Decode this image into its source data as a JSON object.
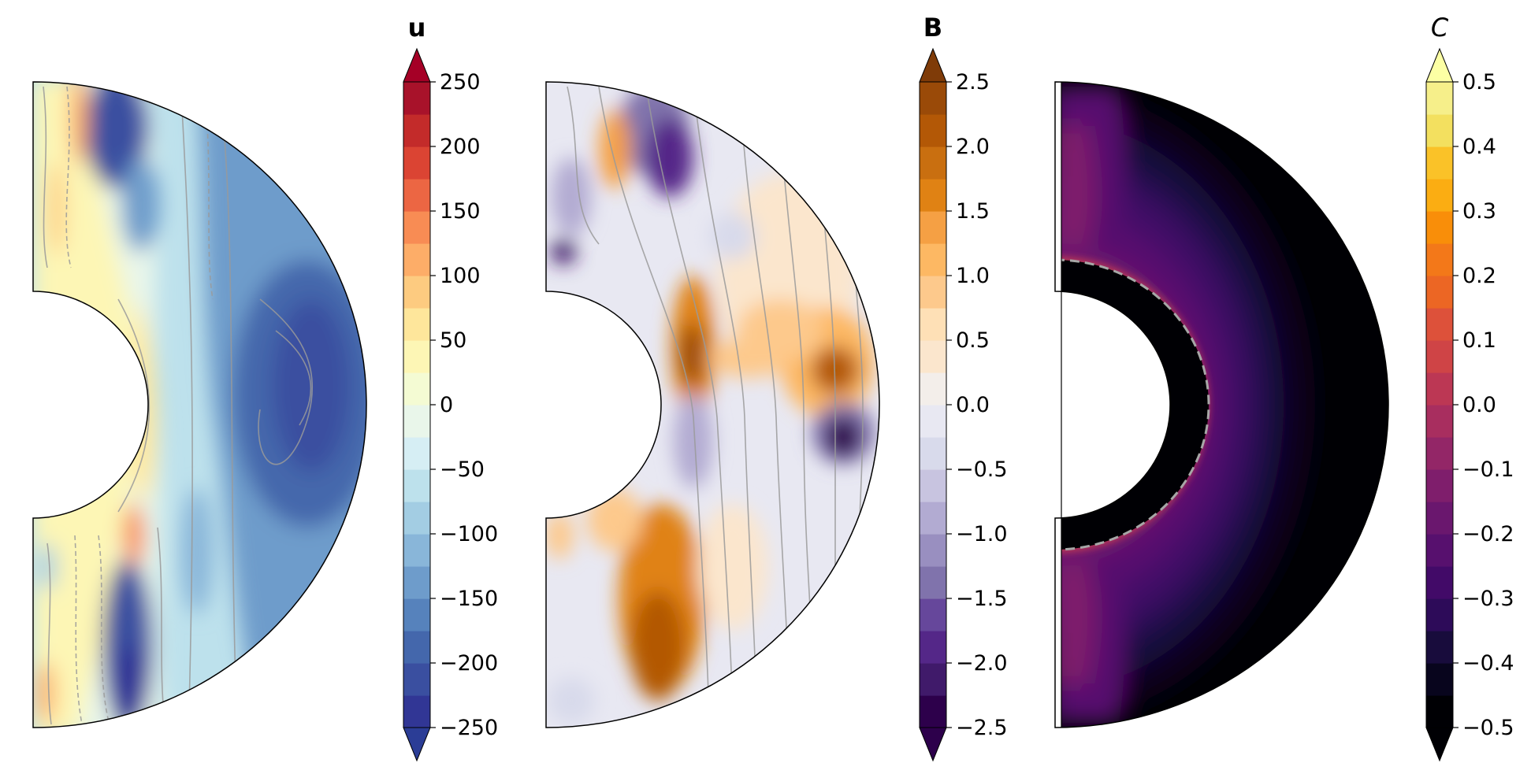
{
  "chart_data": [
    {
      "type": "heatmap",
      "subtype": "meridional-section-filled-contour",
      "colorbar_title": "u",
      "colormap": "RdYlBu_r",
      "colorbar_levels": [
        -250,
        -225,
        -200,
        -175,
        -150,
        -125,
        -100,
        -75,
        -50,
        -25,
        0,
        25,
        50,
        75,
        100,
        125,
        150,
        175,
        200,
        225,
        250
      ],
      "colorbar_ticks": [
        250,
        200,
        150,
        100,
        50,
        0,
        -50,
        -100,
        -150,
        -200,
        -250
      ],
      "colorbar_tick_labels": [
        "250",
        "200",
        "150",
        "100",
        "50",
        "0",
        "−50",
        "−100",
        "−150",
        "−200",
        "−250"
      ],
      "colorbar_extend": "both",
      "colors_low_to_high": [
        "#313695",
        "#3a4fa0",
        "#4467ac",
        "#5682bc",
        "#6e9ccb",
        "#89b6d9",
        "#a3cde3",
        "#bde1ec",
        "#d6eef4",
        "#e9f6ea",
        "#f4fbd3",
        "#fdf6b5",
        "#fee69b",
        "#fdcb80",
        "#fdad68",
        "#f88c54",
        "#ec6643",
        "#db4433",
        "#c32b2a",
        "#a8122a"
      ],
      "extend_colors": {
        "under": "#2b3d96",
        "over": "#a50026"
      },
      "contour_overlay": "thin grey contour lines, dashed where negative",
      "description_values": "strong negative (blue) belt at equator toward outer boundary; positive (red/orange) near inner boundary tangent cylinder and near the polar axis"
    },
    {
      "type": "heatmap",
      "subtype": "meridional-section-filled-contour",
      "colorbar_title": "B",
      "colormap": "PuOr",
      "colorbar_levels": [
        -2.5,
        -2.25,
        -2.0,
        -1.75,
        -1.5,
        -1.25,
        -1.0,
        -0.75,
        -0.5,
        -0.25,
        0.0,
        0.25,
        0.5,
        0.75,
        1.0,
        1.25,
        1.5,
        1.75,
        2.0,
        2.25,
        2.5
      ],
      "colorbar_ticks": [
        2.5,
        2.0,
        1.5,
        1.0,
        0.5,
        0.0,
        -0.5,
        -1.0,
        -1.5,
        -2.0,
        -2.5
      ],
      "colorbar_tick_labels": [
        "2.5",
        "2.0",
        "1.5",
        "1.0",
        "0.5",
        "0.0",
        "−0.5",
        "−1.0",
        "−1.5",
        "−2.0",
        "−2.5"
      ],
      "colorbar_extend": "both",
      "colors_low_to_high": [
        "#2d004b",
        "#401a6a",
        "#542788",
        "#66479b",
        "#8073ac",
        "#998fc0",
        "#b2abd2",
        "#c8c4e0",
        "#d8daeb",
        "#e8e8f2",
        "#f3eeea",
        "#fbe6cd",
        "#fee0b6",
        "#fdc98c",
        "#fdb863",
        "#f5a044",
        "#e08214",
        "#c96f10",
        "#b35806",
        "#9a4a08"
      ],
      "extend_colors": {
        "under": "#2d004b",
        "over": "#7f3b08"
      },
      "contour_overlay": "thin grey field lines",
      "description_values": "alternating positive (orange) and negative (purple) lobes, strongest near equator at outer boundary and at high latitudes"
    },
    {
      "type": "heatmap",
      "subtype": "meridional-section-filled-contour",
      "colorbar_title": "C",
      "colormap": "inferno",
      "colorbar_levels": [
        -0.5,
        -0.45,
        -0.4,
        -0.35,
        -0.3,
        -0.25,
        -0.2,
        -0.15,
        -0.1,
        -0.05,
        0.0,
        0.05,
        0.1,
        0.15,
        0.2,
        0.25,
        0.3,
        0.35,
        0.4,
        0.45,
        0.5
      ],
      "colorbar_ticks": [
        0.5,
        0.4,
        0.3,
        0.2,
        0.1,
        0.0,
        -0.1,
        -0.2,
        -0.3,
        -0.4,
        -0.5
      ],
      "colorbar_tick_labels": [
        "0.5",
        "0.4",
        "0.3",
        "0.2",
        "0.1",
        "0.0",
        "−0.1",
        "−0.2",
        "−0.3",
        "−0.4",
        "−0.5"
      ],
      "colorbar_extend": "both",
      "colors_low_to_high": [
        "#000004",
        "#08051d",
        "#180c3c",
        "#2d0b59",
        "#420a68",
        "#57106e",
        "#6a176e",
        "#7f1e6c",
        "#932667",
        "#a82e5f",
        "#bc3754",
        "#cf4446",
        "#dd513a",
        "#ec6624",
        "#f37819",
        "#f98e09",
        "#fbad12",
        "#fac228",
        "#f3e05f",
        "#f6ef8a"
      ],
      "extend_colors": {
        "under": "#000004",
        "over": "#fcffa4"
      },
      "contour_overlay": "grey dashed line marking the inner boundary",
      "description_values": "bright layer just outside the inner core boundary, decaying outward to dark; solid black inner core"
    }
  ]
}
